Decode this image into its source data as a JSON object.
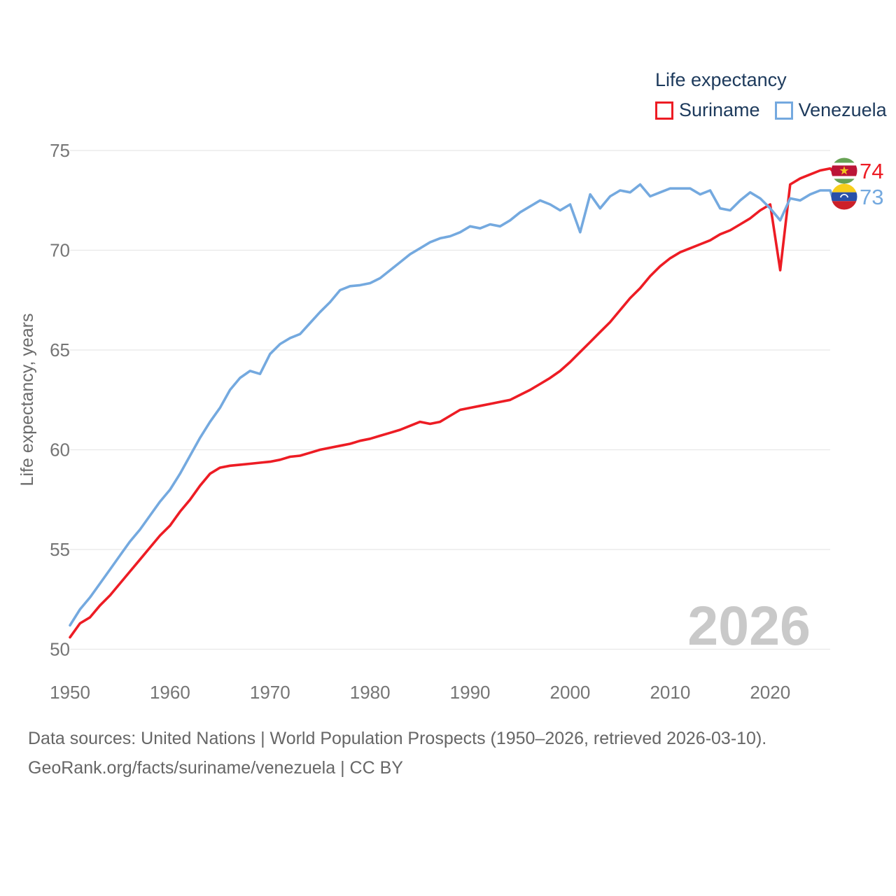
{
  "legend": {
    "title": "Life expectancy",
    "series": [
      {
        "label": "Suriname",
        "color": "#ED1C24"
      },
      {
        "label": "Venezuela",
        "color": "#74A9DF"
      }
    ]
  },
  "y_axis": {
    "title": "Life expectancy, years",
    "ticks": [
      75,
      70,
      65,
      60,
      55,
      50
    ]
  },
  "x_axis": {
    "ticks": [
      1950,
      1960,
      1970,
      1980,
      1990,
      2000,
      2010,
      2020
    ]
  },
  "watermark": "2026",
  "end_labels": {
    "suriname": "74",
    "venezuela": "73"
  },
  "footer": {
    "line1": "Data sources: United Nations | World Population Prospects (1950–2026, retrieved 2026-03-10).",
    "line2": "GeoRank.org/facts/suriname/venezuela | CC BY"
  },
  "chart_data": {
    "type": "line",
    "title": "Life expectancy",
    "xlabel": "",
    "ylabel": "Life expectancy, years",
    "x_range": [
      1950,
      2026
    ],
    "ylim": [
      50,
      75
    ],
    "grid": "horizontal",
    "legend_position": "top-right",
    "series": [
      {
        "name": "Suriname",
        "color": "#ED1C24",
        "end_label": 74,
        "values": [
          50.6,
          51.3,
          51.6,
          52.2,
          52.7,
          53.3,
          53.9,
          54.5,
          55.1,
          55.7,
          56.2,
          56.9,
          57.5,
          58.2,
          58.8,
          59.1,
          59.2,
          59.25,
          59.3,
          59.35,
          59.4,
          59.5,
          59.65,
          59.7,
          59.85,
          60.0,
          60.1,
          60.2,
          60.3,
          60.45,
          60.55,
          60.7,
          60.85,
          61.0,
          61.2,
          61.4,
          61.3,
          61.4,
          61.7,
          62.0,
          62.1,
          62.2,
          62.3,
          62.4,
          62.5,
          62.75,
          63.0,
          63.3,
          63.6,
          63.95,
          64.4,
          64.9,
          65.4,
          65.9,
          66.4,
          67.0,
          67.6,
          68.1,
          68.7,
          69.2,
          69.6,
          69.9,
          70.1,
          70.3,
          70.5,
          70.8,
          71.0,
          71.3,
          71.6,
          72.0,
          72.3,
          69.0,
          73.3,
          73.6,
          73.8,
          74.0,
          74.1
        ]
      },
      {
        "name": "Venezuela",
        "color": "#74A9DF",
        "end_label": 73,
        "values": [
          51.2,
          52.0,
          52.6,
          53.3,
          54.0,
          54.7,
          55.4,
          56.0,
          56.7,
          57.4,
          58.0,
          58.8,
          59.7,
          60.6,
          61.4,
          62.1,
          63.0,
          63.6,
          63.95,
          63.8,
          64.8,
          65.3,
          65.6,
          65.8,
          66.35,
          66.9,
          67.4,
          68.0,
          68.2,
          68.25,
          68.35,
          68.6,
          69.0,
          69.4,
          69.8,
          70.1,
          70.4,
          70.6,
          70.7,
          70.9,
          71.2,
          71.1,
          71.3,
          71.2,
          71.5,
          71.9,
          72.2,
          72.5,
          72.3,
          72.0,
          72.3,
          70.9,
          72.8,
          72.1,
          72.7,
          73.0,
          72.9,
          73.3,
          72.7,
          72.9,
          73.1,
          73.1,
          73.1,
          72.8,
          73.0,
          72.1,
          72.0,
          72.5,
          72.9,
          72.6,
          72.1,
          71.5,
          72.6,
          72.5,
          72.8,
          73.0,
          73.0
        ]
      }
    ]
  }
}
